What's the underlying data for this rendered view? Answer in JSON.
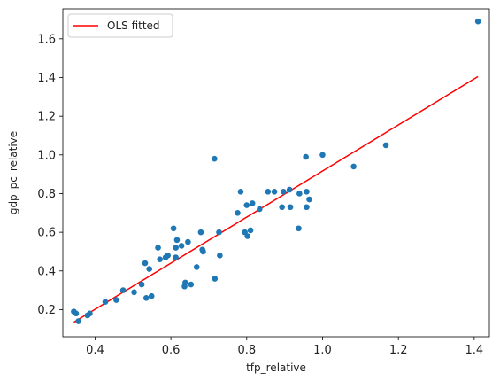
{
  "chart_data": {
    "type": "scatter",
    "title": "",
    "xlabel": "tfp_relative",
    "ylabel": "gdp_pc_relative",
    "xlim": [
      0.315,
      1.44
    ],
    "ylim": [
      0.06,
      1.755
    ],
    "x_ticks": [
      0.4,
      0.6,
      0.8,
      1.0,
      1.2,
      1.4
    ],
    "x_tick_labels": [
      "0.4",
      "0.6",
      "0.8",
      "1.0",
      "1.2",
      "1.4"
    ],
    "y_ticks": [
      0.2,
      0.4,
      0.6,
      0.8,
      1.0,
      1.2,
      1.4,
      1.6
    ],
    "y_tick_labels": [
      "0.2",
      "0.4",
      "0.6",
      "0.8",
      "1.0",
      "1.2",
      "1.4",
      "1.6"
    ],
    "grid": false,
    "legend": {
      "position": "top-left",
      "entries": [
        "OLS fitted"
      ]
    },
    "colors": {
      "points": "#1f77b4",
      "fit_line": "#ff0000"
    },
    "series": [
      {
        "kind": "scatter",
        "points": [
          [
            0.344,
            0.19
          ],
          [
            0.35,
            0.18
          ],
          [
            0.356,
            0.14
          ],
          [
            0.38,
            0.17
          ],
          [
            0.386,
            0.18
          ],
          [
            0.427,
            0.24
          ],
          [
            0.456,
            0.25
          ],
          [
            0.474,
            0.3
          ],
          [
            0.503,
            0.29
          ],
          [
            0.523,
            0.33
          ],
          [
            0.532,
            0.44
          ],
          [
            0.535,
            0.26
          ],
          [
            0.543,
            0.41
          ],
          [
            0.549,
            0.27
          ],
          [
            0.566,
            0.52
          ],
          [
            0.571,
            0.46
          ],
          [
            0.586,
            0.47
          ],
          [
            0.592,
            0.48
          ],
          [
            0.607,
            0.62
          ],
          [
            0.613,
            0.47
          ],
          [
            0.613,
            0.52
          ],
          [
            0.616,
            0.56
          ],
          [
            0.628,
            0.53
          ],
          [
            0.636,
            0.32
          ],
          [
            0.638,
            0.34
          ],
          [
            0.645,
            0.55
          ],
          [
            0.653,
            0.33
          ],
          [
            0.668,
            0.42
          ],
          [
            0.679,
            0.6
          ],
          [
            0.683,
            0.51
          ],
          [
            0.685,
            0.5
          ],
          [
            0.715,
            0.98
          ],
          [
            0.716,
            0.36
          ],
          [
            0.727,
            0.6
          ],
          [
            0.729,
            0.48
          ],
          [
            0.776,
            0.7
          ],
          [
            0.784,
            0.81
          ],
          [
            0.795,
            0.6
          ],
          [
            0.8,
            0.74
          ],
          [
            0.802,
            0.58
          ],
          [
            0.81,
            0.61
          ],
          [
            0.815,
            0.75
          ],
          [
            0.834,
            0.72
          ],
          [
            0.856,
            0.81
          ],
          [
            0.873,
            0.81
          ],
          [
            0.893,
            0.73
          ],
          [
            0.897,
            0.81
          ],
          [
            0.913,
            0.82
          ],
          [
            0.915,
            0.73
          ],
          [
            0.937,
            0.62
          ],
          [
            0.939,
            0.8
          ],
          [
            0.956,
            0.99
          ],
          [
            0.958,
            0.81
          ],
          [
            0.958,
            0.73
          ],
          [
            0.965,
            0.77
          ],
          [
            1.0,
            1.0
          ],
          [
            1.082,
            0.94
          ],
          [
            1.167,
            1.05
          ],
          [
            1.41,
            1.69
          ]
        ]
      },
      {
        "kind": "line",
        "name": "OLS fitted",
        "x": [
          0.344,
          1.41
        ],
        "y": [
          0.135,
          1.405
        ]
      }
    ]
  }
}
